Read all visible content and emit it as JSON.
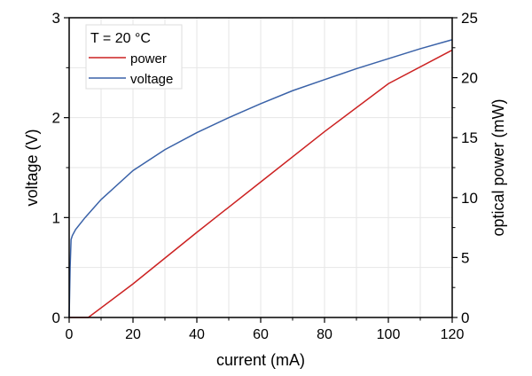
{
  "chart_data": {
    "type": "line",
    "title": "",
    "xlabel": "current (mA)",
    "ylabel_left": "voltage (V)",
    "ylabel_right": "optical power (mW)",
    "xlim": [
      0,
      120
    ],
    "ylim_left": [
      0,
      3
    ],
    "ylim_right": [
      0,
      25
    ],
    "xticks": [
      "0",
      "20",
      "40",
      "60",
      "80",
      "100",
      "120"
    ],
    "yticks_left": [
      "0",
      "1",
      "2",
      "3"
    ],
    "yticks_right": [
      "0",
      "5",
      "10",
      "15",
      "20",
      "25"
    ],
    "grid": true,
    "legend": {
      "title": "T = 20 °C",
      "position": "top-left"
    },
    "series": [
      {
        "name": "power",
        "axis": "right",
        "color": "#cc2222",
        "x": [
          0,
          6,
          20,
          40,
          60,
          80,
          100,
          120
        ],
        "y": [
          0,
          0,
          2.8,
          7.1,
          11.3,
          15.5,
          19.5,
          22.3
        ]
      },
      {
        "name": "voltage",
        "axis": "left",
        "color": "#3a62a8",
        "x": [
          0,
          0.3,
          0.6,
          1,
          2,
          5,
          10,
          20,
          30,
          40,
          50,
          60,
          70,
          80,
          90,
          100,
          110,
          120
        ],
        "y": [
          0,
          0.5,
          0.78,
          0.82,
          0.88,
          1.0,
          1.18,
          1.47,
          1.68,
          1.85,
          2.0,
          2.14,
          2.27,
          2.38,
          2.49,
          2.59,
          2.69,
          2.78
        ]
      }
    ]
  }
}
